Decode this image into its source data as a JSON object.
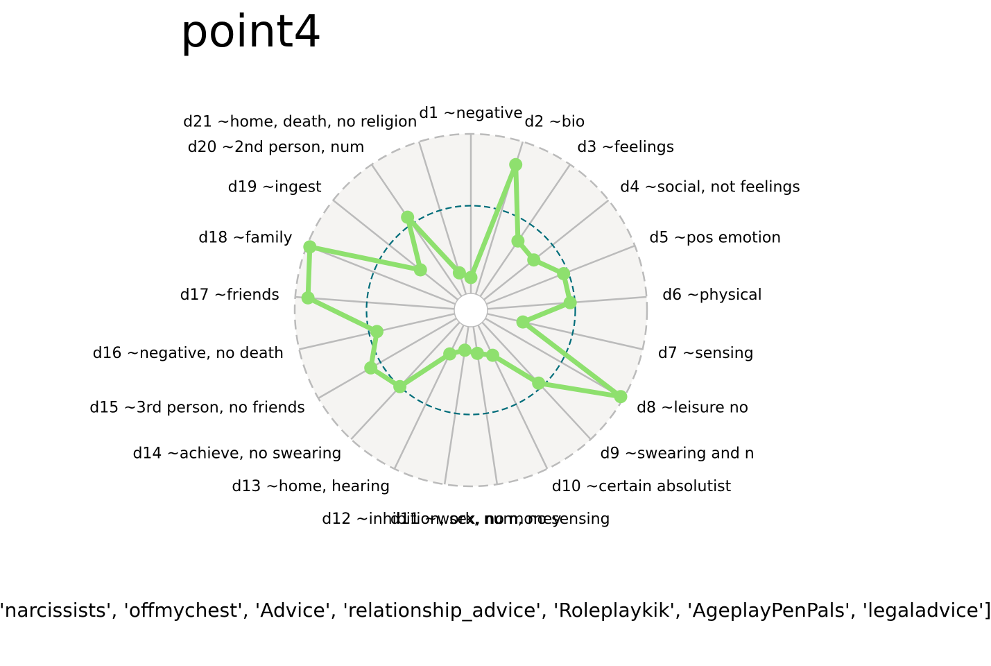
{
  "chart_data": {
    "type": "radar",
    "title": "point4",
    "categories": [
      "d1 ~negative",
      "d2 ~bio",
      "d3 ~feelings",
      "d4 ~social, not feelings",
      "d5 ~pos emotion",
      "d6 ~physical",
      "d7 ~sensing",
      "d8 ~leisure no",
      "d9 ~swearing and n",
      "d10 ~certain absolutist",
      "d11 ~work, num, no sensing",
      "d12 ~inhibition, sex, no money",
      "d13 ~home, hearing",
      "d14 ~achieve, no swearing",
      "d15 ~3rd person, no friends",
      "d16 ~negative, no death",
      "d17 ~friends",
      "d18 ~family",
      "d19 ~ingest",
      "d20 ~2nd person, num",
      "d21 ~home, death, no religion"
    ],
    "series": [
      {
        "values": [
          0.1,
          0.85,
          0.42,
          0.4,
          0.52,
          0.52,
          0.23,
          0.98,
          0.52,
          0.21,
          0.17,
          0.15,
          0.2,
          0.55,
          0.62,
          0.5,
          0.92,
          0.98,
          0.3,
          0.6,
          0.14
        ]
      }
    ],
    "radial_range": [
      0,
      1
    ],
    "reference_circle": 0.55,
    "grid": true,
    "colors": {
      "series": "#8ee06e",
      "reference": "#006d7a",
      "background": "#f5f4f2",
      "grid": "#bbbbbb"
    }
  },
  "footer_text": "['narcissists', 'offmychest', 'Advice', 'relationship_advice', 'Roleplaykik', 'AgeplayPenPals', 'legaladvice']"
}
